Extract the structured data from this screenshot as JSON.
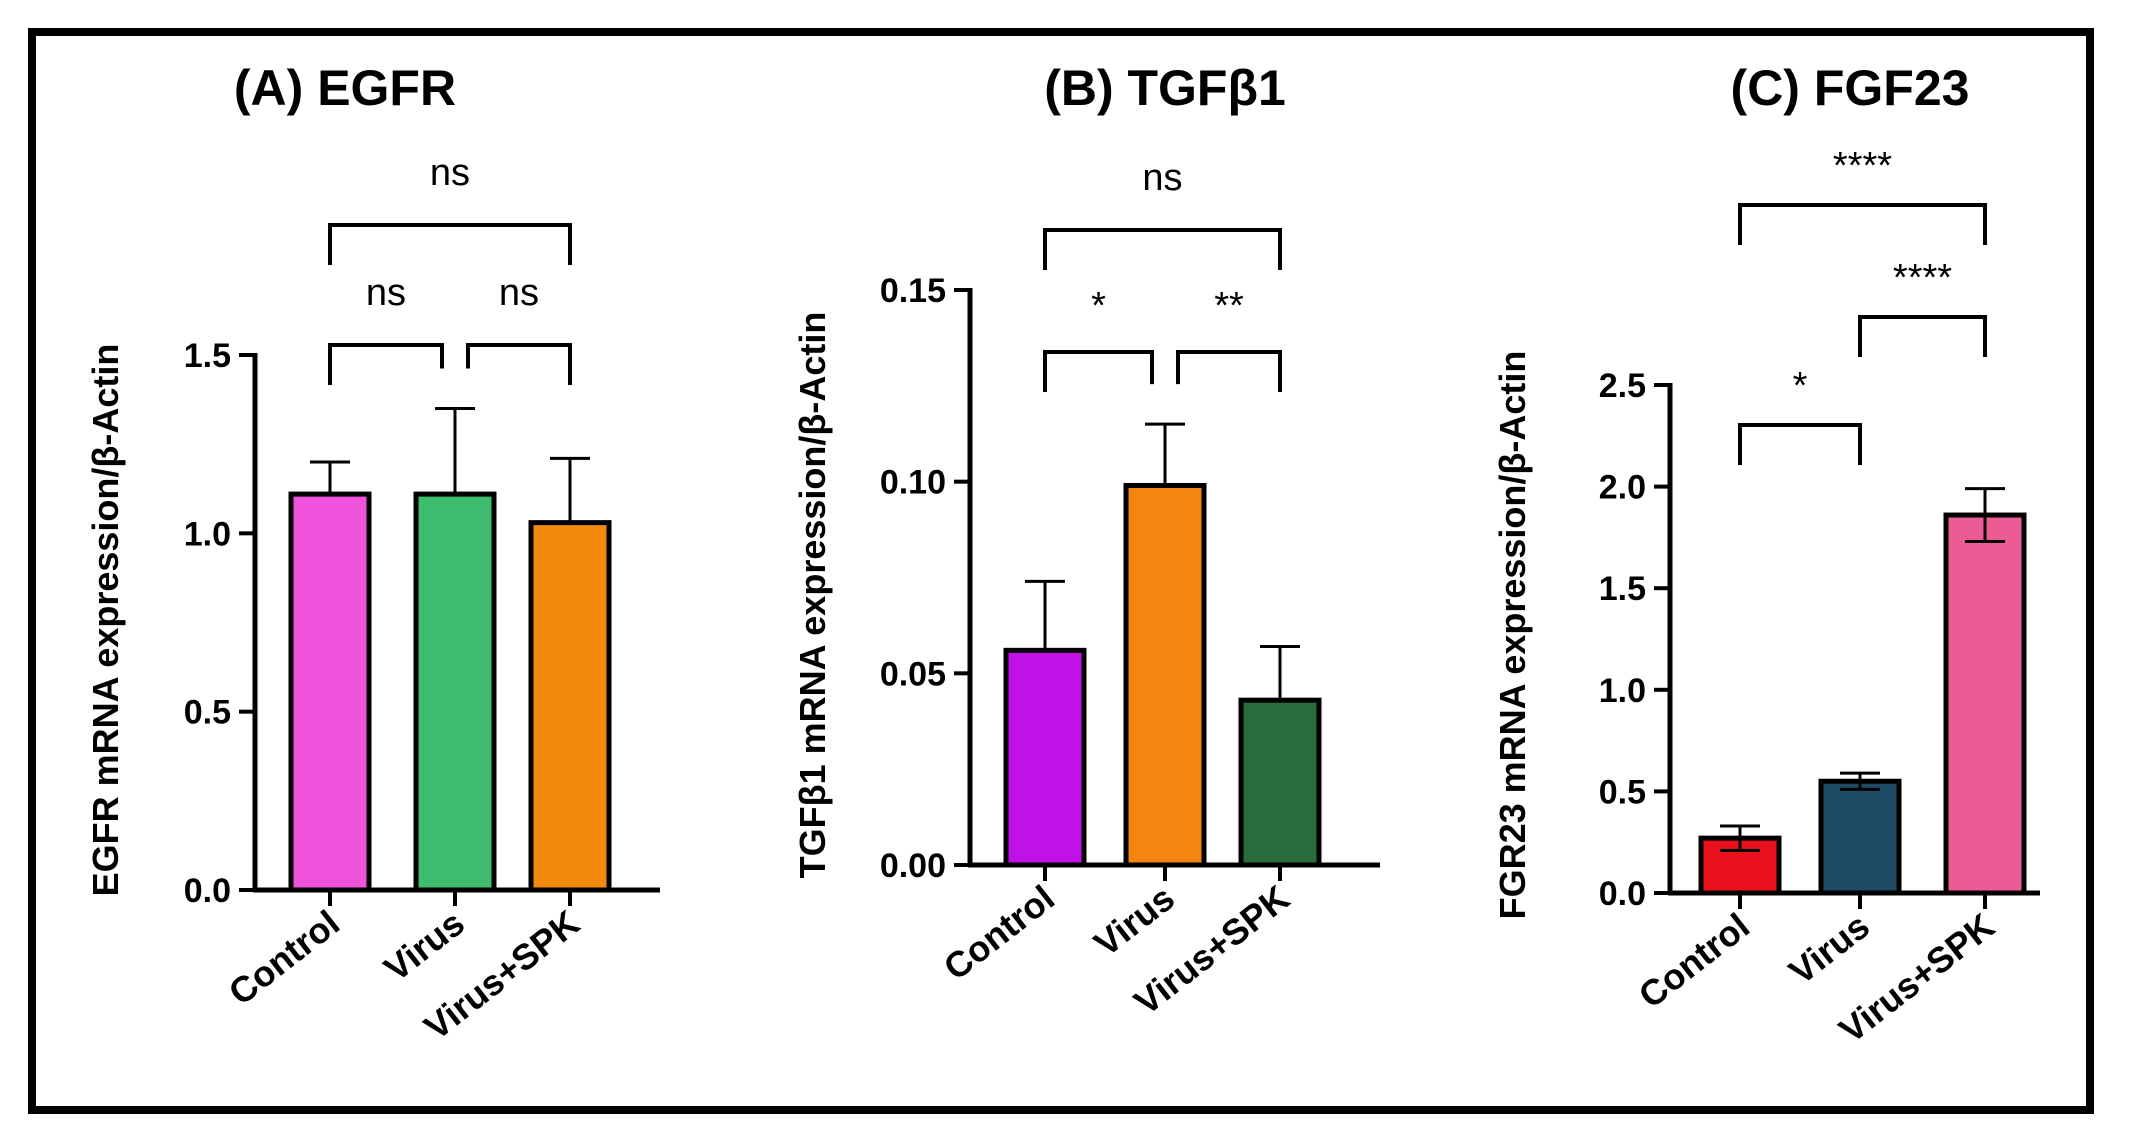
{
  "chart_data": [
    {
      "type": "bar",
      "title": "(A) EGFR",
      "ylabel": "EGFR mRNA expression/β-Actin",
      "xlabel": "",
      "categories": [
        "Control",
        "Virus",
        "Virus+SPK"
      ],
      "values": [
        1.11,
        1.11,
        1.03
      ],
      "errors": [
        0.09,
        0.24,
        0.18
      ],
      "colors": [
        "#ef53dc",
        "#3dbd6d",
        "#f28a10"
      ],
      "ylim": [
        0,
        1.5
      ],
      "yticks": [
        "0.0",
        "0.5",
        "1.0",
        "1.5"
      ],
      "comparisons": [
        {
          "from": 0,
          "to": 1,
          "label": "ns"
        },
        {
          "from": 1,
          "to": 2,
          "label": "ns"
        },
        {
          "from": 0,
          "to": 2,
          "label": "ns"
        }
      ]
    },
    {
      "type": "bar",
      "title": "(B) TGFβ1",
      "ylabel": "TGFβ1 mRNA expression/β-Actin",
      "xlabel": "",
      "categories": [
        "Control",
        "Virus",
        "Virus+SPK"
      ],
      "values": [
        0.056,
        0.099,
        0.043
      ],
      "errors": [
        0.018,
        0.016,
        0.014
      ],
      "colors": [
        "#c011e6",
        "#f5850f",
        "#2a6b3c"
      ],
      "ylim": [
        0,
        0.15
      ],
      "yticks": [
        "0.00",
        "0.05",
        "0.10",
        "0.15"
      ],
      "comparisons": [
        {
          "from": 0,
          "to": 1,
          "label": "*"
        },
        {
          "from": 1,
          "to": 2,
          "label": "**"
        },
        {
          "from": 0,
          "to": 2,
          "label": "ns"
        }
      ]
    },
    {
      "type": "bar",
      "title": "(C) FGF23",
      "ylabel": "FGR23 mRNA expression/β-Actin",
      "xlabel": "",
      "categories": [
        "Control",
        "Virus",
        "Virus+SPK"
      ],
      "values": [
        0.27,
        0.55,
        1.86
      ],
      "errors": [
        0.06,
        0.04,
        0.13
      ],
      "colors": [
        "#e8101a",
        "#1f4a66",
        "#ec5b93"
      ],
      "ylim": [
        0,
        2.5
      ],
      "yticks": [
        "0.0",
        "0.5",
        "1.0",
        "1.5",
        "2.0",
        "2.5"
      ],
      "comparisons": [
        {
          "from": 0,
          "to": 1,
          "label": "*"
        },
        {
          "from": 1,
          "to": 2,
          "label": "****"
        },
        {
          "from": 0,
          "to": 2,
          "label": "****"
        }
      ]
    }
  ]
}
